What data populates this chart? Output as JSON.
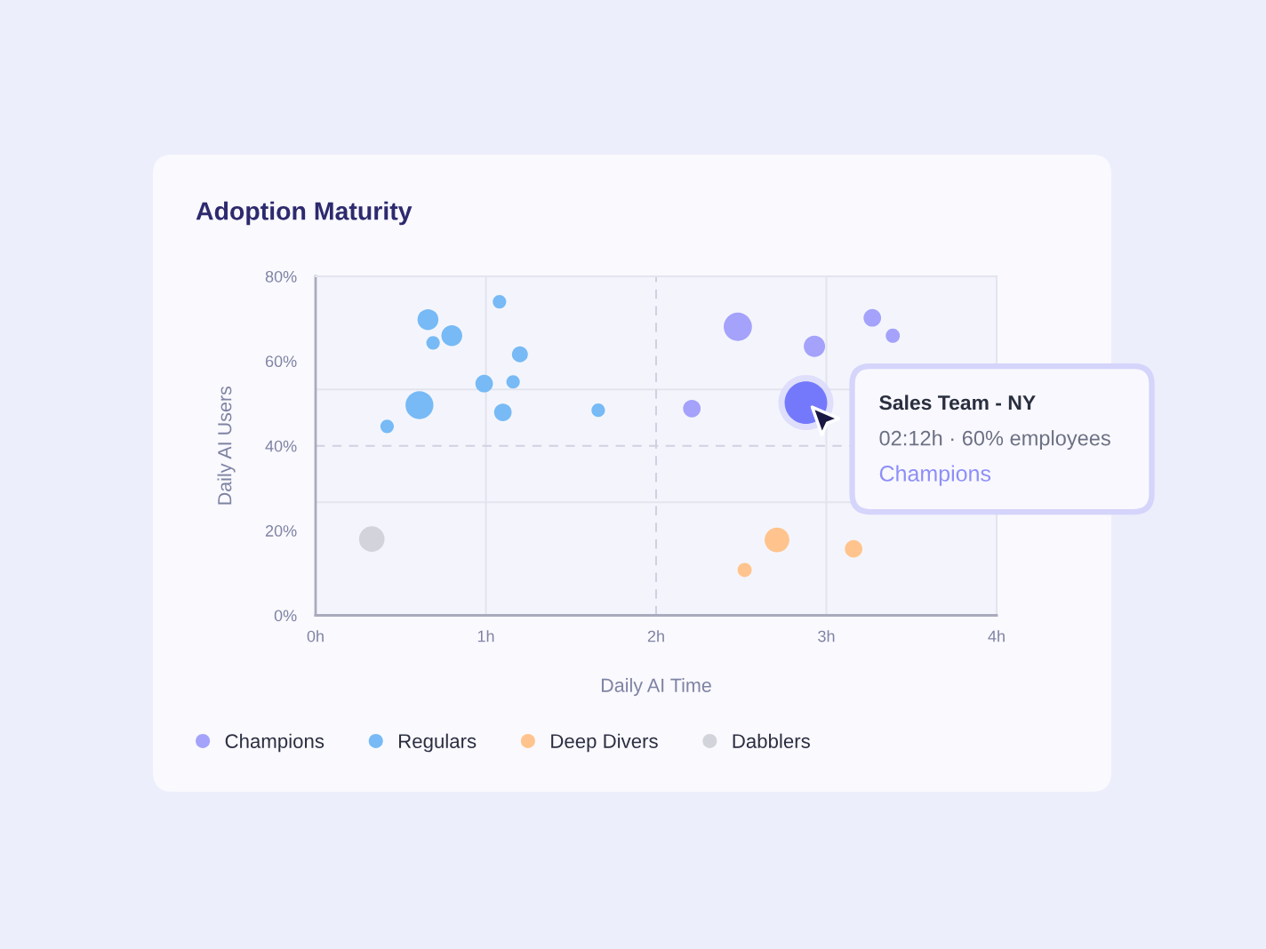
{
  "chart_data": {
    "type": "bubble",
    "title": "Adoption Maturity",
    "xlabel": "Daily AI Time",
    "ylabel": "Daily AI Users",
    "xlim": [
      0,
      4
    ],
    "xticks": [
      {
        "value": 0,
        "label": "0h"
      },
      {
        "value": 1,
        "label": "1h"
      },
      {
        "value": 2,
        "label": "2h"
      },
      {
        "value": 3,
        "label": "3h"
      },
      {
        "value": 4,
        "label": "4h"
      }
    ],
    "ylim": [
      0,
      80
    ],
    "yticks": [
      {
        "value": 0,
        "label": "0%"
      },
      {
        "value": 20,
        "label": "20%"
      },
      {
        "value": 40,
        "label": "40%"
      },
      {
        "value": 60,
        "label": "60%"
      },
      {
        "value": 80,
        "label": "80%"
      }
    ],
    "ref_lines": [
      {
        "axis": "x",
        "value": 1,
        "color": "#e3e4ee",
        "line_style": "solid"
      },
      {
        "axis": "x",
        "value": 3,
        "color": "#e3e4ee",
        "line_style": "solid"
      },
      {
        "axis": "y",
        "value": 26.7,
        "color": "#e3e4ee",
        "line_style": "solid"
      },
      {
        "axis": "y",
        "value": 53.3,
        "color": "#e3e4ee",
        "line_style": "solid"
      },
      {
        "axis": "x",
        "value": 2,
        "color": "#cfd1e2",
        "line_style": "dashed"
      },
      {
        "axis": "y",
        "value": 40,
        "color": "#cfd1e2",
        "line_style": "dashed"
      }
    ],
    "marker": "circle",
    "legend": "bottom",
    "series": [
      {
        "name": "Champions",
        "color": "#a4a2fb",
        "colors": [
          "#a4a2fb",
          "#a4a2fb",
          "#a4a2fb",
          "#a4a2fb",
          "#a4a2fb",
          "#7479fc"
        ],
        "x": [
          2.48,
          2.93,
          3.27,
          3.39,
          2.21,
          2.88
        ],
        "values": [
          68.1,
          63.5,
          70.2,
          66.0,
          48.8,
          50.2
        ],
        "sizes": [
          0.44,
          0.25,
          0.17,
          0.11,
          0.17,
          1
        ]
      },
      {
        "name": "Regulars",
        "color": "#77baf5",
        "x": [
          1.08,
          0.66,
          0.8,
          0.69,
          1.2,
          0.99,
          1.16,
          0.61,
          1.1,
          1.66,
          0.42
        ],
        "values": [
          74.0,
          69.8,
          66.0,
          64.3,
          61.6,
          54.7,
          55.1,
          49.6,
          47.9,
          48.4,
          44.6
        ],
        "sizes": [
          0.1,
          0.24,
          0.24,
          0.1,
          0.14,
          0.17,
          0.1,
          0.43,
          0.17,
          0.1,
          0.1
        ]
      },
      {
        "name": "Deep Divers",
        "color": "#ffc48d",
        "x": [
          2.71,
          3.16,
          2.52
        ],
        "values": [
          17.8,
          15.7,
          10.7
        ],
        "sizes": [
          0.34,
          0.17,
          0.11
        ]
      },
      {
        "name": "Dabblers",
        "color": "#d3d3db",
        "x": [
          0.33
        ],
        "values": [
          18.0
        ],
        "sizes": [
          0.36
        ]
      }
    ],
    "annotations": [
      "Sales Team - NY",
      "02:12h · 60% employees",
      "Champions"
    ]
  }
}
